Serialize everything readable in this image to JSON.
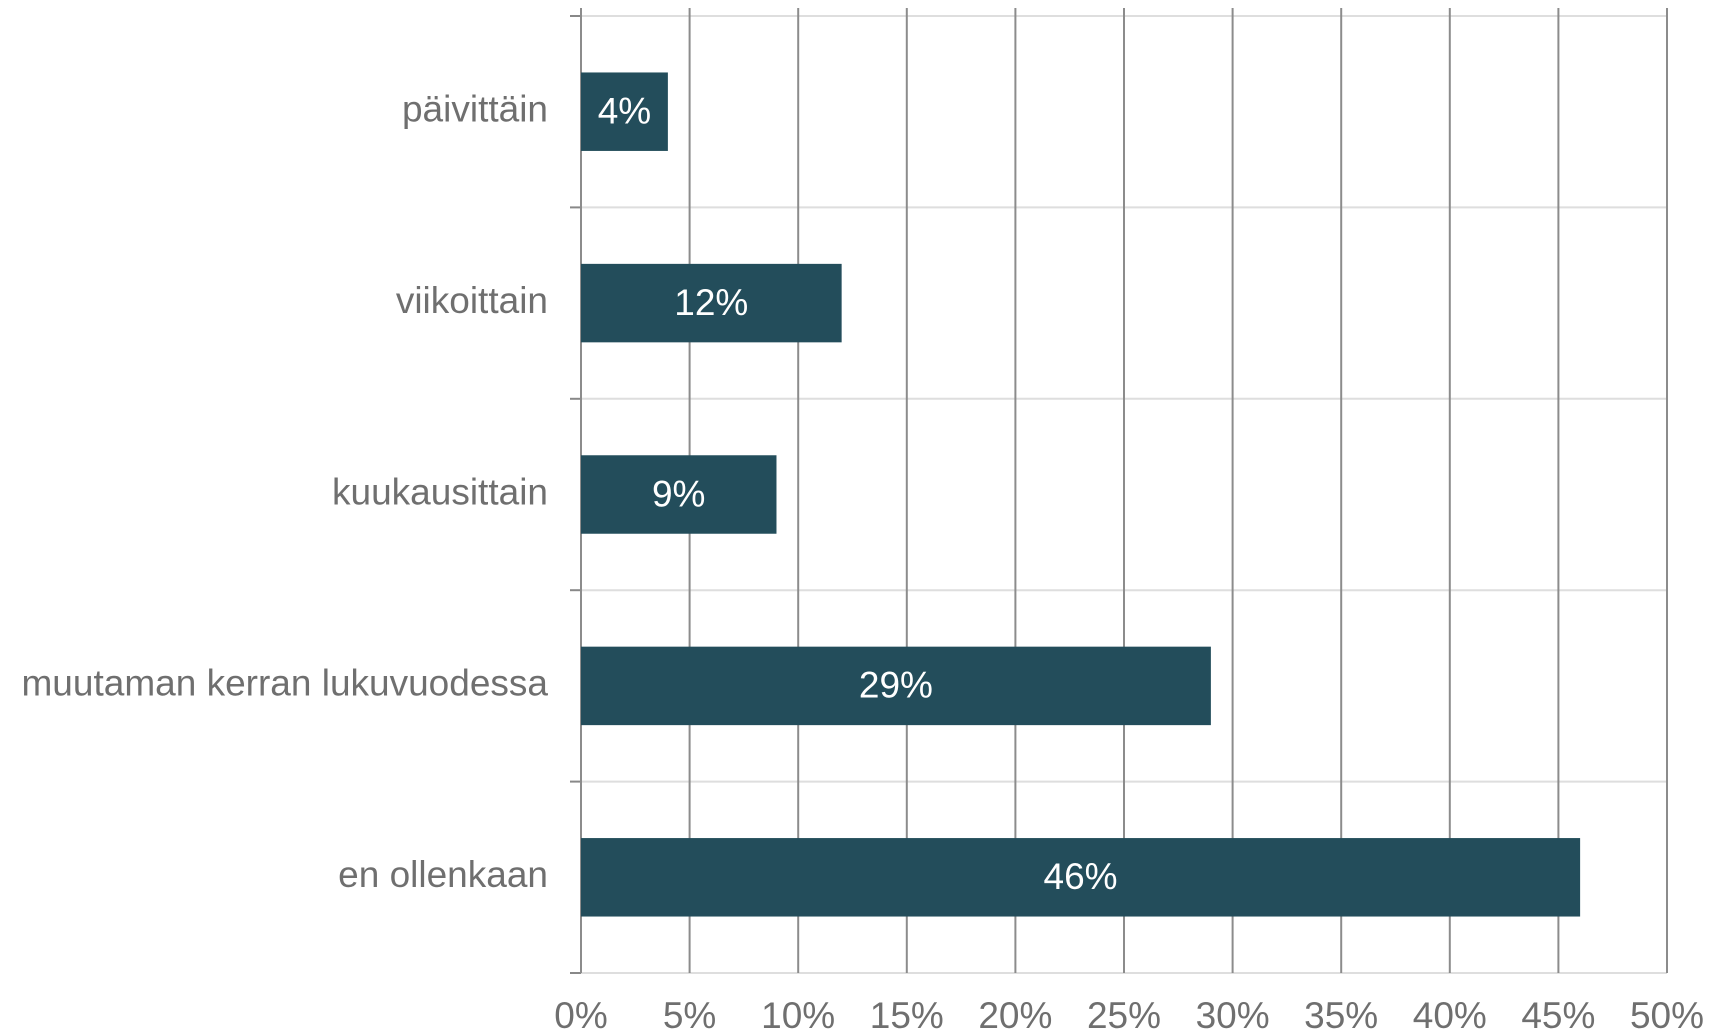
{
  "chart_data": {
    "type": "bar",
    "orientation": "horizontal",
    "categories": [
      "päivittäin",
      "viikoittain",
      "kuukausittain",
      "muutaman kerran lukuvuodessa",
      "en ollenkaan"
    ],
    "values": [
      4,
      12,
      9,
      29,
      46
    ],
    "value_labels": [
      "4%",
      "12%",
      "9%",
      "29%",
      "46%"
    ],
    "color": "#234d5b",
    "xlim": [
      0,
      50
    ],
    "xticks": [
      {
        "value": 0,
        "label": "0%"
      },
      {
        "value": 5,
        "label": "5%"
      },
      {
        "value": 10,
        "label": "10%"
      },
      {
        "value": 15,
        "label": "15%"
      },
      {
        "value": 20,
        "label": "20%"
      },
      {
        "value": 25,
        "label": "25%"
      },
      {
        "value": 30,
        "label": "30%"
      },
      {
        "value": 35,
        "label": "35%"
      },
      {
        "value": 40,
        "label": "40%"
      },
      {
        "value": 45,
        "label": "45%"
      },
      {
        "value": 50,
        "label": "50%"
      }
    ],
    "grid": true
  }
}
